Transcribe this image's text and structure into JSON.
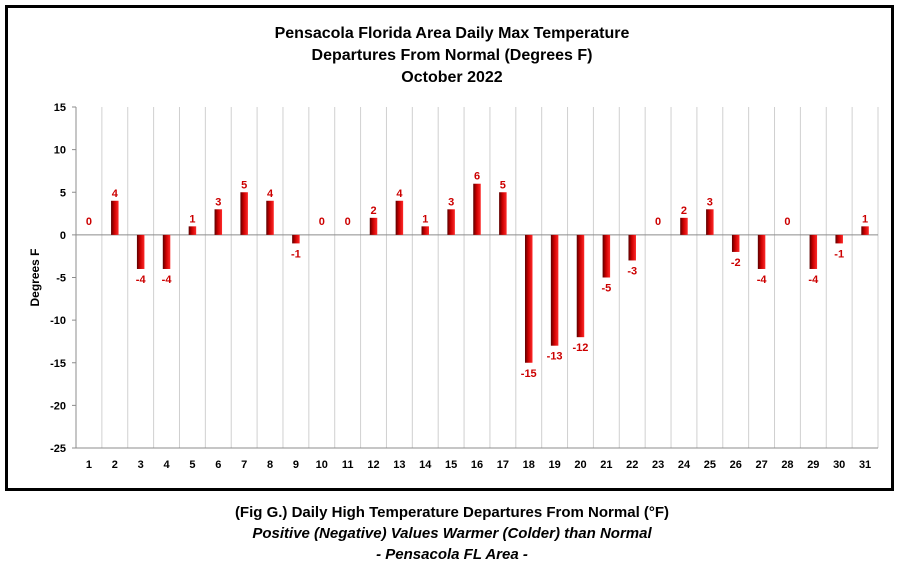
{
  "chart_data": {
    "type": "bar",
    "title": [
      "Pensacola Florida Area Daily Max Temperature",
      "Departures From Normal (Degrees F)",
      "October 2022"
    ],
    "xlabel": "",
    "ylabel": "Degrees F",
    "ylim": [
      -25,
      15
    ],
    "yticks": [
      15,
      10,
      5,
      0,
      -5,
      -10,
      -15,
      -20,
      -25
    ],
    "grid": "vertical",
    "legend": "none",
    "categories": [
      "1",
      "2",
      "3",
      "4",
      "5",
      "6",
      "7",
      "8",
      "9",
      "10",
      "11",
      "12",
      "13",
      "14",
      "15",
      "16",
      "17",
      "18",
      "19",
      "20",
      "21",
      "22",
      "23",
      "24",
      "25",
      "26",
      "27",
      "28",
      "29",
      "30",
      "31"
    ],
    "series": [
      {
        "values": [
          0,
          4,
          -4,
          -4,
          1,
          3,
          5,
          4,
          -1,
          0,
          0,
          2,
          4,
          1,
          3,
          6,
          5,
          -15,
          -13,
          -12,
          -5,
          -3,
          0,
          2,
          3,
          -2,
          -4,
          0,
          -4,
          -1,
          1
        ]
      }
    ],
    "bar_color": "#cc0000",
    "label_color": "#cc0000"
  },
  "caption": {
    "main": "(Fig G.) Daily High Temperature Departures From Normal (°F)",
    "sub": "Positive (Negative) Values Warmer (Colder) than Normal",
    "area": "- Pensacola FL Area -"
  }
}
